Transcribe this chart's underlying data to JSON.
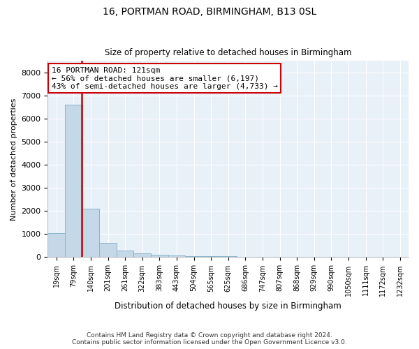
{
  "title1": "16, PORTMAN ROAD, BIRMINGHAM, B13 0SL",
  "title2": "Size of property relative to detached houses in Birmingham",
  "xlabel": "Distribution of detached houses by size in Birmingham",
  "ylabel": "Number of detached properties",
  "footer1": "Contains HM Land Registry data © Crown copyright and database right 2024.",
  "footer2": "Contains public sector information licensed under the Open Government Licence v3.0.",
  "annotation_line1": "16 PORTMAN ROAD: 121sqm",
  "annotation_line2": "← 56% of detached houses are smaller (6,197)",
  "annotation_line3": "43% of semi-detached houses are larger (4,733) →",
  "bar_labels": [
    "19sqm",
    "79sqm",
    "140sqm",
    "201sqm",
    "261sqm",
    "322sqm",
    "383sqm",
    "443sqm",
    "504sqm",
    "565sqm",
    "625sqm",
    "686sqm",
    "747sqm",
    "807sqm",
    "868sqm",
    "929sqm",
    "990sqm",
    "1050sqm",
    "1111sqm",
    "1172sqm",
    "1232sqm"
  ],
  "bar_values": [
    1050,
    6600,
    2100,
    620,
    300,
    150,
    100,
    65,
    55,
    50,
    50,
    0,
    0,
    0,
    0,
    0,
    0,
    0,
    0,
    0,
    0
  ],
  "bar_color": "#c5d8e8",
  "bar_edge_color": "#89b4cc",
  "property_line_color": "#cc0000",
  "annotation_box_color": "#cc0000",
  "background_color": "#e8f0f8",
  "grid_color": "#ffffff",
  "ylim": [
    0,
    8500
  ],
  "yticks": [
    0,
    1000,
    2000,
    3000,
    4000,
    5000,
    6000,
    7000,
    8000
  ],
  "property_line_x": 1.48
}
